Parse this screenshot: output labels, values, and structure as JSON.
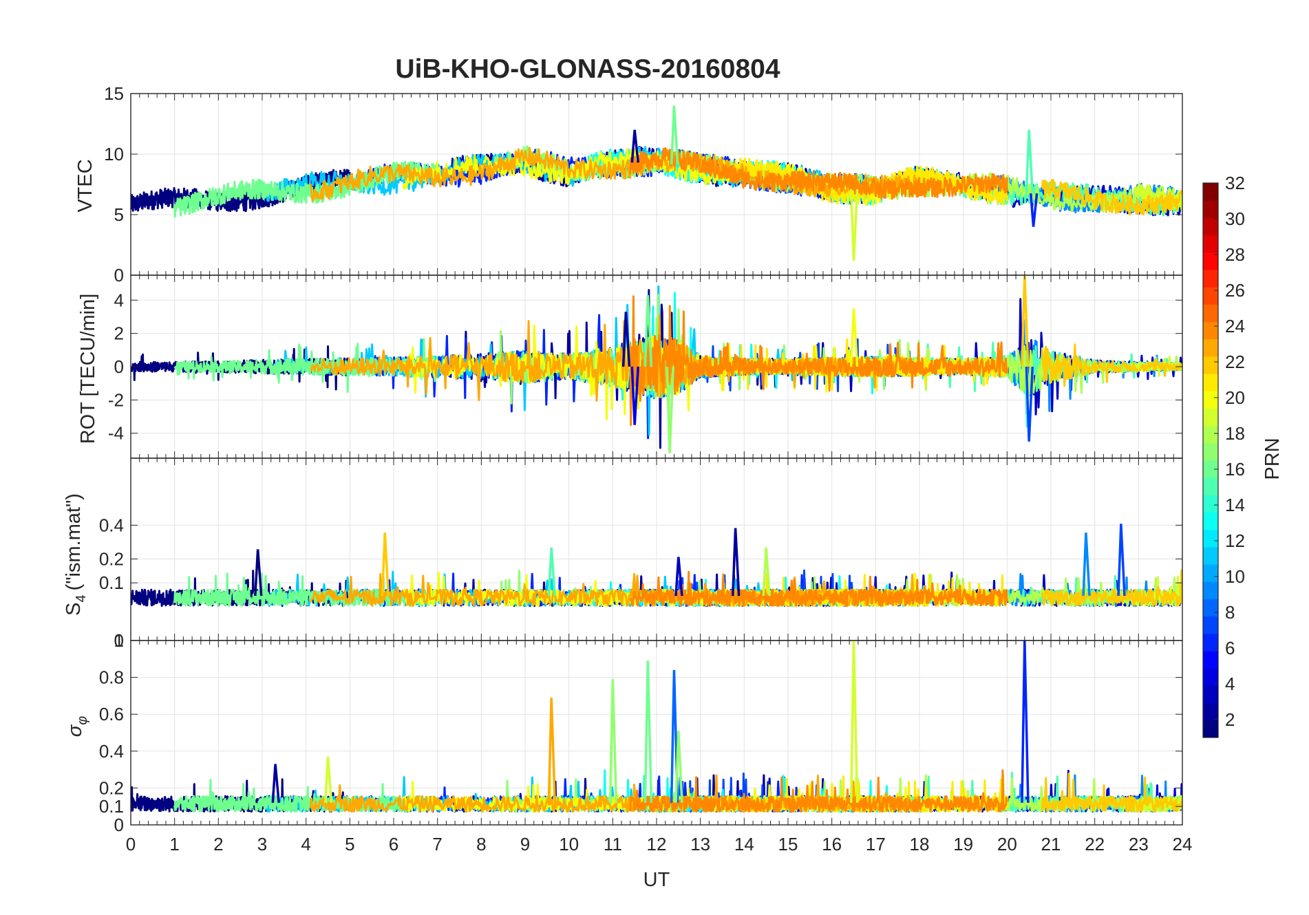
{
  "title": "UiB-KHO-GLONASS-20160804",
  "colors": {
    "background": "#ffffff",
    "axis": "#262626",
    "grid": "#e3e3e3",
    "colormap": "jet"
  },
  "chart_data": [
    {
      "type": "line",
      "panel": "VTEC",
      "ylabel": "VTEC",
      "ylim": [
        0,
        15
      ],
      "yticks": [
        "0",
        "5",
        "10",
        "15"
      ],
      "xlim": [
        0,
        24
      ],
      "grid": true,
      "series_colored_by": "PRN",
      "trend": {
        "x": [
          0,
          1,
          2,
          3,
          4,
          5,
          6,
          7,
          8,
          9,
          10,
          11,
          12,
          13,
          14,
          15,
          16,
          17,
          18,
          19,
          20,
          21,
          22,
          23,
          24
        ],
        "y": [
          5.8,
          5.9,
          6.2,
          6.8,
          7.2,
          7.5,
          8.0,
          8.3,
          8.8,
          9.4,
          8.5,
          9.2,
          9.4,
          8.8,
          8.4,
          8.0,
          7.2,
          7.0,
          7.8,
          7.4,
          7.0,
          6.6,
          6.2,
          6.3,
          6.1
        ]
      },
      "features": [
        {
          "x": 11.5,
          "y": 12.0,
          "prn": 2
        },
        {
          "x": 12.4,
          "y": 14.0,
          "prn": 16
        },
        {
          "x": 16.5,
          "y": 1.2,
          "prn": 19
        },
        {
          "x": 20.5,
          "y": 12.0,
          "prn": 15
        },
        {
          "x": 20.6,
          "y": 4.0,
          "prn": 6
        }
      ]
    },
    {
      "type": "line",
      "panel": "ROT",
      "ylabel": "ROT [TECU/min]",
      "ylim": [
        -5.5,
        5.5
      ],
      "yticks": [
        "-4",
        "-2",
        "0",
        "2",
        "4"
      ],
      "xlim": [
        0,
        24
      ],
      "grid": true,
      "series_colored_by": "PRN",
      "envelope": {
        "x": [
          0,
          2,
          4,
          6,
          8,
          9,
          10,
          11,
          11.5,
          12,
          12.5,
          13,
          14,
          15,
          16,
          17,
          18,
          19,
          20,
          20.5,
          21,
          22,
          23,
          24
        ],
        "y": [
          0.5,
          0.6,
          0.9,
          1.0,
          1.4,
          1.8,
          1.4,
          2.2,
          3.0,
          3.5,
          3.0,
          1.2,
          0.9,
          0.8,
          1.0,
          1.1,
          1.0,
          0.9,
          1.2,
          3.5,
          1.8,
          0.7,
          0.5,
          0.4
        ]
      },
      "features": [
        {
          "x": 11.3,
          "y": 3.3,
          "prn": 2
        },
        {
          "x": 11.5,
          "y": -3.5,
          "prn": 4
        },
        {
          "x": 11.8,
          "y": 4.3,
          "prn": 16
        },
        {
          "x": 12.3,
          "y": -5.2,
          "prn": 17
        },
        {
          "x": 16.5,
          "y": 3.5,
          "prn": 20
        },
        {
          "x": 20.4,
          "y": 5.5,
          "prn": 22
        },
        {
          "x": 20.5,
          "y": -4.5,
          "prn": 7
        }
      ]
    },
    {
      "type": "line",
      "panel": "S4",
      "ylabel": "S4 (\"ism.mat\")",
      "ylabel_main": "S",
      "ylabel_sub": "4",
      "ylabel_rest": "(\"ism.mat\")",
      "ylim": [
        0,
        1
      ],
      "yticks": [
        "0",
        "0.1",
        "0.2",
        "0.4"
      ],
      "ytick_values": [
        0,
        0.1,
        0.2,
        0.4
      ],
      "scale": "sqrt",
      "xlim": [
        0,
        24
      ],
      "grid": true,
      "series_colored_by": "PRN",
      "baseline": 0.06,
      "features": [
        {
          "x": 2.9,
          "y": 0.25,
          "prn": 1
        },
        {
          "x": 5.8,
          "y": 0.35,
          "prn": 22
        },
        {
          "x": 9.6,
          "y": 0.26,
          "prn": 15
        },
        {
          "x": 12.5,
          "y": 0.21,
          "prn": 3
        },
        {
          "x": 13.8,
          "y": 0.38,
          "prn": 2
        },
        {
          "x": 14.5,
          "y": 0.26,
          "prn": 18
        },
        {
          "x": 21.8,
          "y": 0.35,
          "prn": 9
        },
        {
          "x": 22.6,
          "y": 0.41,
          "prn": 7
        }
      ]
    },
    {
      "type": "line",
      "panel": "sigma_phi",
      "ylabel": "σφ",
      "ylabel_main": "σ",
      "ylabel_sub": "φ",
      "ylim": [
        0,
        1
      ],
      "yticks": [
        "0",
        "0.1",
        "0.2",
        "0.4",
        "0.6",
        "0.8",
        "1"
      ],
      "ytick_values": [
        0,
        0.1,
        0.2,
        0.4,
        0.6,
        0.8,
        1
      ],
      "xlim": [
        0,
        24
      ],
      "xlabel": "UT",
      "xticks": [
        "0",
        "1",
        "2",
        "3",
        "4",
        "5",
        "6",
        "7",
        "8",
        "9",
        "10",
        "11",
        "12",
        "13",
        "14",
        "15",
        "16",
        "17",
        "18",
        "19",
        "20",
        "21",
        "22",
        "23",
        "24"
      ],
      "grid": true,
      "series_colored_by": "PRN",
      "baseline": 0.12,
      "features": [
        {
          "x": 3.3,
          "y": 0.33,
          "prn": 2
        },
        {
          "x": 4.5,
          "y": 0.37,
          "prn": 19
        },
        {
          "x": 9.6,
          "y": 0.69,
          "prn": 23
        },
        {
          "x": 11.0,
          "y": 0.79,
          "prn": 17
        },
        {
          "x": 11.8,
          "y": 0.89,
          "prn": 16
        },
        {
          "x": 12.4,
          "y": 0.84,
          "prn": 8
        },
        {
          "x": 12.5,
          "y": 0.51,
          "prn": 17
        },
        {
          "x": 16.5,
          "y": 1.0,
          "prn": 19
        },
        {
          "x": 20.4,
          "y": 1.0,
          "prn": 6
        }
      ]
    }
  ],
  "colorbar": {
    "label": "PRN",
    "ticks": [
      "2",
      "4",
      "6",
      "8",
      "10",
      "12",
      "14",
      "16",
      "18",
      "20",
      "22",
      "24",
      "26",
      "28",
      "30",
      "32"
    ],
    "range": [
      1,
      32
    ]
  }
}
